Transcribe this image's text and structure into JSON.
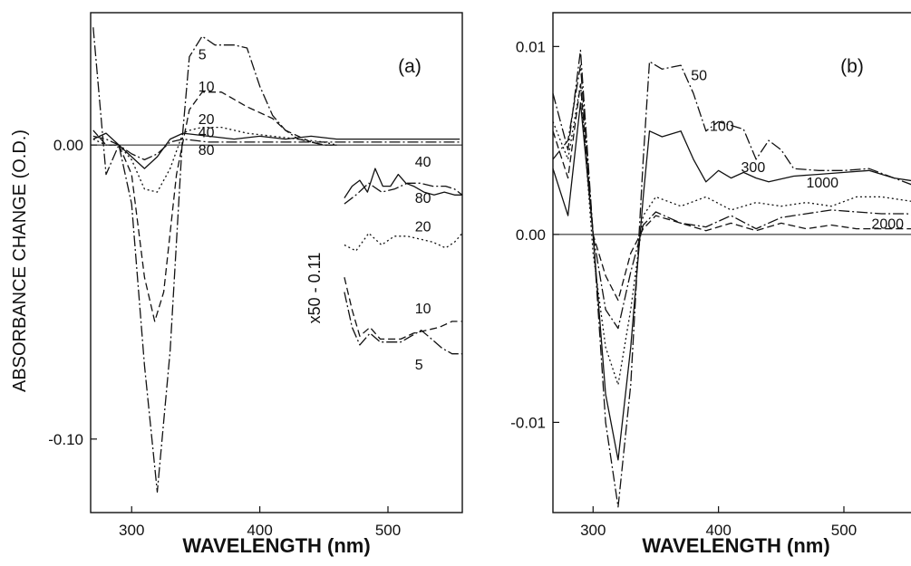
{
  "chart_data": [
    {
      "type": "line",
      "panel_label": "(a)",
      "xlabel": "WAVELENGTH (nm)",
      "ylabel": "ABSORBANCE CHANGE (O.D.)",
      "xlim": [
        268,
        558
      ],
      "ylim": [
        -0.125,
        0.045
      ],
      "xticks": [
        300,
        400,
        500
      ],
      "xtick_labels": [
        "300",
        "400",
        "500"
      ],
      "yticks": [
        0.0,
        -0.1
      ],
      "ytick_labels": [
        "0.00",
        "-0.10"
      ],
      "inset_label": "x50 - 0.11",
      "series": [
        {
          "name": "5",
          "label_at": [
            352,
            0.031
          ],
          "dash": "12,3,2,3",
          "x": [
            270,
            280,
            290,
            300,
            310,
            320,
            330,
            340,
            345,
            355,
            365,
            380,
            390,
            400,
            410,
            420,
            430,
            440,
            450,
            460
          ],
          "y": [
            0.04,
            -0.01,
            0.0,
            -0.02,
            -0.075,
            -0.118,
            -0.07,
            0.005,
            0.03,
            0.037,
            0.034,
            0.034,
            0.033,
            0.02,
            0.01,
            0.005,
            0.002,
            0.001,
            0.0,
            0.0
          ]
        },
        {
          "name": "10",
          "label_at": [
            352,
            0.02
          ],
          "dash": "8,4",
          "x": [
            270,
            280,
            290,
            300,
            310,
            318,
            325,
            335,
            345,
            355,
            370,
            390,
            410,
            420,
            430,
            440,
            450,
            460
          ],
          "y": [
            0.005,
            0.0,
            0.0,
            -0.01,
            -0.045,
            -0.06,
            -0.05,
            -0.01,
            0.012,
            0.018,
            0.018,
            0.013,
            0.009,
            0.005,
            0.003,
            0.001,
            0.0,
            0.0
          ]
        },
        {
          "name": "20",
          "label_at": [
            352,
            0.009
          ],
          "dash": "2,3",
          "x": [
            270,
            280,
            290,
            300,
            310,
            320,
            330,
            340,
            345,
            355,
            370,
            390,
            410,
            430,
            450,
            460
          ],
          "y": [
            0.002,
            0.0,
            0.0,
            -0.005,
            -0.015,
            -0.016,
            -0.008,
            0.004,
            0.005,
            0.006,
            0.006,
            0.004,
            0.003,
            0.002,
            0.001,
            0.0
          ]
        },
        {
          "name": "40",
          "label_at": [
            352,
            0.0045
          ],
          "dash": "",
          "x": [
            270,
            280,
            290,
            300,
            310,
            320,
            330,
            340,
            360,
            380,
            400,
            420,
            440,
            460,
            480,
            500,
            520,
            540,
            556
          ],
          "y": [
            0.002,
            0.004,
            0.0,
            -0.004,
            -0.008,
            -0.004,
            0.002,
            0.004,
            0.003,
            0.002,
            0.003,
            0.002,
            0.003,
            0.002,
            0.002,
            0.002,
            0.002,
            0.002,
            0.002
          ]
        },
        {
          "name": "80",
          "label_at": [
            352,
            -0.0015
          ],
          "dash": "12,3,2,3",
          "x": [
            270,
            280,
            290,
            300,
            310,
            320,
            330,
            340,
            360,
            380,
            400,
            420,
            440,
            460,
            480,
            500,
            520,
            540,
            556
          ],
          "y": [
            0.003,
            0.002,
            0.0,
            -0.003,
            -0.005,
            -0.003,
            0.001,
            0.002,
            0.001,
            0.001,
            0.001,
            0.001,
            0.001,
            0.001,
            0.001,
            0.001,
            0.001,
            0.001,
            0.001
          ]
        }
      ],
      "inset_series": [
        {
          "name": "40",
          "label_at": [
            521,
            -0.0055
          ],
          "dash": "",
          "x": [
            466,
            472,
            478,
            484,
            490,
            496,
            502,
            508,
            514,
            520,
            528,
            536,
            544,
            552,
            558
          ],
          "y": [
            -0.018,
            -0.014,
            -0.012,
            -0.016,
            -0.008,
            -0.014,
            -0.014,
            -0.01,
            -0.013,
            -0.014,
            -0.016,
            -0.017,
            -0.016,
            -0.017,
            -0.017
          ]
        },
        {
          "name": "80",
          "label_at": [
            521,
            -0.0178
          ],
          "dash": "12,3,2,3",
          "x": [
            466,
            475,
            485,
            495,
            505,
            515,
            525,
            535,
            545,
            552,
            558
          ],
          "y": [
            -0.02,
            -0.017,
            -0.013,
            -0.016,
            -0.015,
            -0.013,
            -0.013,
            -0.014,
            -0.014,
            -0.015,
            -0.017
          ]
        },
        {
          "name": "20",
          "label_at": [
            521,
            -0.0275
          ],
          "dash": "2,3",
          "x": [
            466,
            475,
            485,
            495,
            505,
            515,
            525,
            535,
            545,
            552,
            558
          ],
          "y": [
            -0.034,
            -0.036,
            -0.03,
            -0.034,
            -0.031,
            -0.031,
            -0.032,
            -0.033,
            -0.035,
            -0.033,
            -0.03
          ]
        },
        {
          "name": "10",
          "label_at": [
            521,
            -0.0554
          ],
          "dash": "8,4",
          "x": [
            466,
            472,
            478,
            486,
            494,
            502,
            510,
            520,
            530,
            540,
            550,
            558
          ],
          "y": [
            -0.045,
            -0.056,
            -0.065,
            -0.062,
            -0.066,
            -0.066,
            -0.066,
            -0.064,
            -0.063,
            -0.062,
            -0.06,
            -0.06
          ]
        },
        {
          "name": "5",
          "label_at": [
            521,
            -0.0745
          ],
          "dash": "12,3,2,3",
          "x": [
            466,
            472,
            478,
            486,
            494,
            502,
            510,
            518,
            526,
            534,
            542,
            550,
            558
          ],
          "y": [
            -0.05,
            -0.062,
            -0.068,
            -0.064,
            -0.067,
            -0.067,
            -0.067,
            -0.065,
            -0.063,
            -0.066,
            -0.069,
            -0.071,
            -0.071
          ]
        }
      ]
    },
    {
      "type": "line",
      "panel_label": "(b)",
      "xlabel": "WAVELENGTH (nm)",
      "ylabel": "",
      "xlim": [
        268,
        560
      ],
      "ylim": [
        -0.0148,
        0.0118
      ],
      "xticks": [
        300,
        400,
        500
      ],
      "xtick_labels": [
        "300",
        "400",
        "500"
      ],
      "yticks": [
        0.01,
        0.0,
        -0.01
      ],
      "ytick_labels": [
        "0.01",
        "0.00",
        "-0.01"
      ],
      "series": [
        {
          "name": "50",
          "label_at": [
            378,
            0.0085
          ],
          "dash": "12,3,2,3",
          "x": [
            268,
            280,
            290,
            300,
            310,
            320,
            330,
            340,
            345,
            355,
            370,
            380,
            390,
            400,
            410,
            420,
            430,
            440,
            450,
            460,
            480,
            500,
            520,
            540,
            560
          ],
          "y": [
            0.004,
            0.005,
            0.009,
            0.0,
            -0.01,
            -0.0145,
            -0.008,
            0.004,
            0.0092,
            0.0088,
            0.009,
            0.0075,
            0.0055,
            0.006,
            0.0058,
            0.0056,
            0.004,
            0.005,
            0.0045,
            0.0035,
            0.0034,
            0.0034,
            0.0035,
            0.003,
            0.0025
          ]
        },
        {
          "name": "100",
          "label_at": [
            393,
            0.0058
          ],
          "dash": "",
          "x": [
            268,
            280,
            290,
            300,
            310,
            320,
            330,
            340,
            345,
            355,
            370,
            380,
            390,
            400,
            410,
            420,
            430,
            440,
            460,
            480,
            500,
            520,
            540,
            560
          ],
          "y": [
            0.0035,
            0.001,
            0.007,
            0.0,
            -0.0085,
            -0.012,
            -0.006,
            0.002,
            0.0055,
            0.0052,
            0.0055,
            0.004,
            0.0028,
            0.0034,
            0.003,
            0.0033,
            0.003,
            0.0028,
            0.0031,
            0.0032,
            0.0033,
            0.0034,
            0.003,
            0.0028
          ]
        },
        {
          "name": "300",
          "label_at": [
            418,
            0.0036
          ],
          "dash": "2,3",
          "x": [
            268,
            280,
            290,
            300,
            310,
            320,
            330,
            340,
            350,
            370,
            390,
            410,
            430,
            450,
            470,
            490,
            510,
            530,
            550,
            560
          ],
          "y": [
            0.006,
            0.004,
            0.008,
            -0.001,
            -0.006,
            -0.008,
            -0.004,
            0.001,
            0.002,
            0.0015,
            0.002,
            0.0013,
            0.0017,
            0.0015,
            0.0017,
            0.0015,
            0.002,
            0.002,
            0.0018,
            0.0017
          ]
        },
        {
          "name": "1000",
          "label_at": [
            470,
            0.0028
          ],
          "dash": "12,3,2,3",
          "x": [
            268,
            280,
            290,
            300,
            310,
            320,
            330,
            340,
            350,
            370,
            390,
            410,
            430,
            450,
            470,
            490,
            510,
            530,
            550,
            560
          ],
          "y": [
            0.0075,
            0.0045,
            0.0098,
            0.0,
            -0.004,
            -0.005,
            -0.002,
            0.0005,
            0.0012,
            0.0006,
            0.0004,
            0.001,
            0.0003,
            0.0009,
            0.0011,
            0.0013,
            0.0012,
            0.0011,
            0.0011,
            0.001
          ]
        },
        {
          "name": "2000",
          "label_at": [
            522,
            0.0006
          ],
          "dash": "8,4",
          "x": [
            268,
            280,
            290,
            300,
            310,
            320,
            330,
            340,
            350,
            370,
            390,
            410,
            430,
            450,
            470,
            490,
            510,
            530,
            550,
            560
          ],
          "y": [
            0.0055,
            0.003,
            0.008,
            0.0,
            -0.0022,
            -0.0035,
            -0.001,
            0.0003,
            0.001,
            0.0006,
            0.0002,
            0.0006,
            0.0002,
            0.0006,
            0.0003,
            0.0005,
            0.0003,
            0.0003,
            0.0003,
            0.0003
          ]
        }
      ]
    }
  ]
}
